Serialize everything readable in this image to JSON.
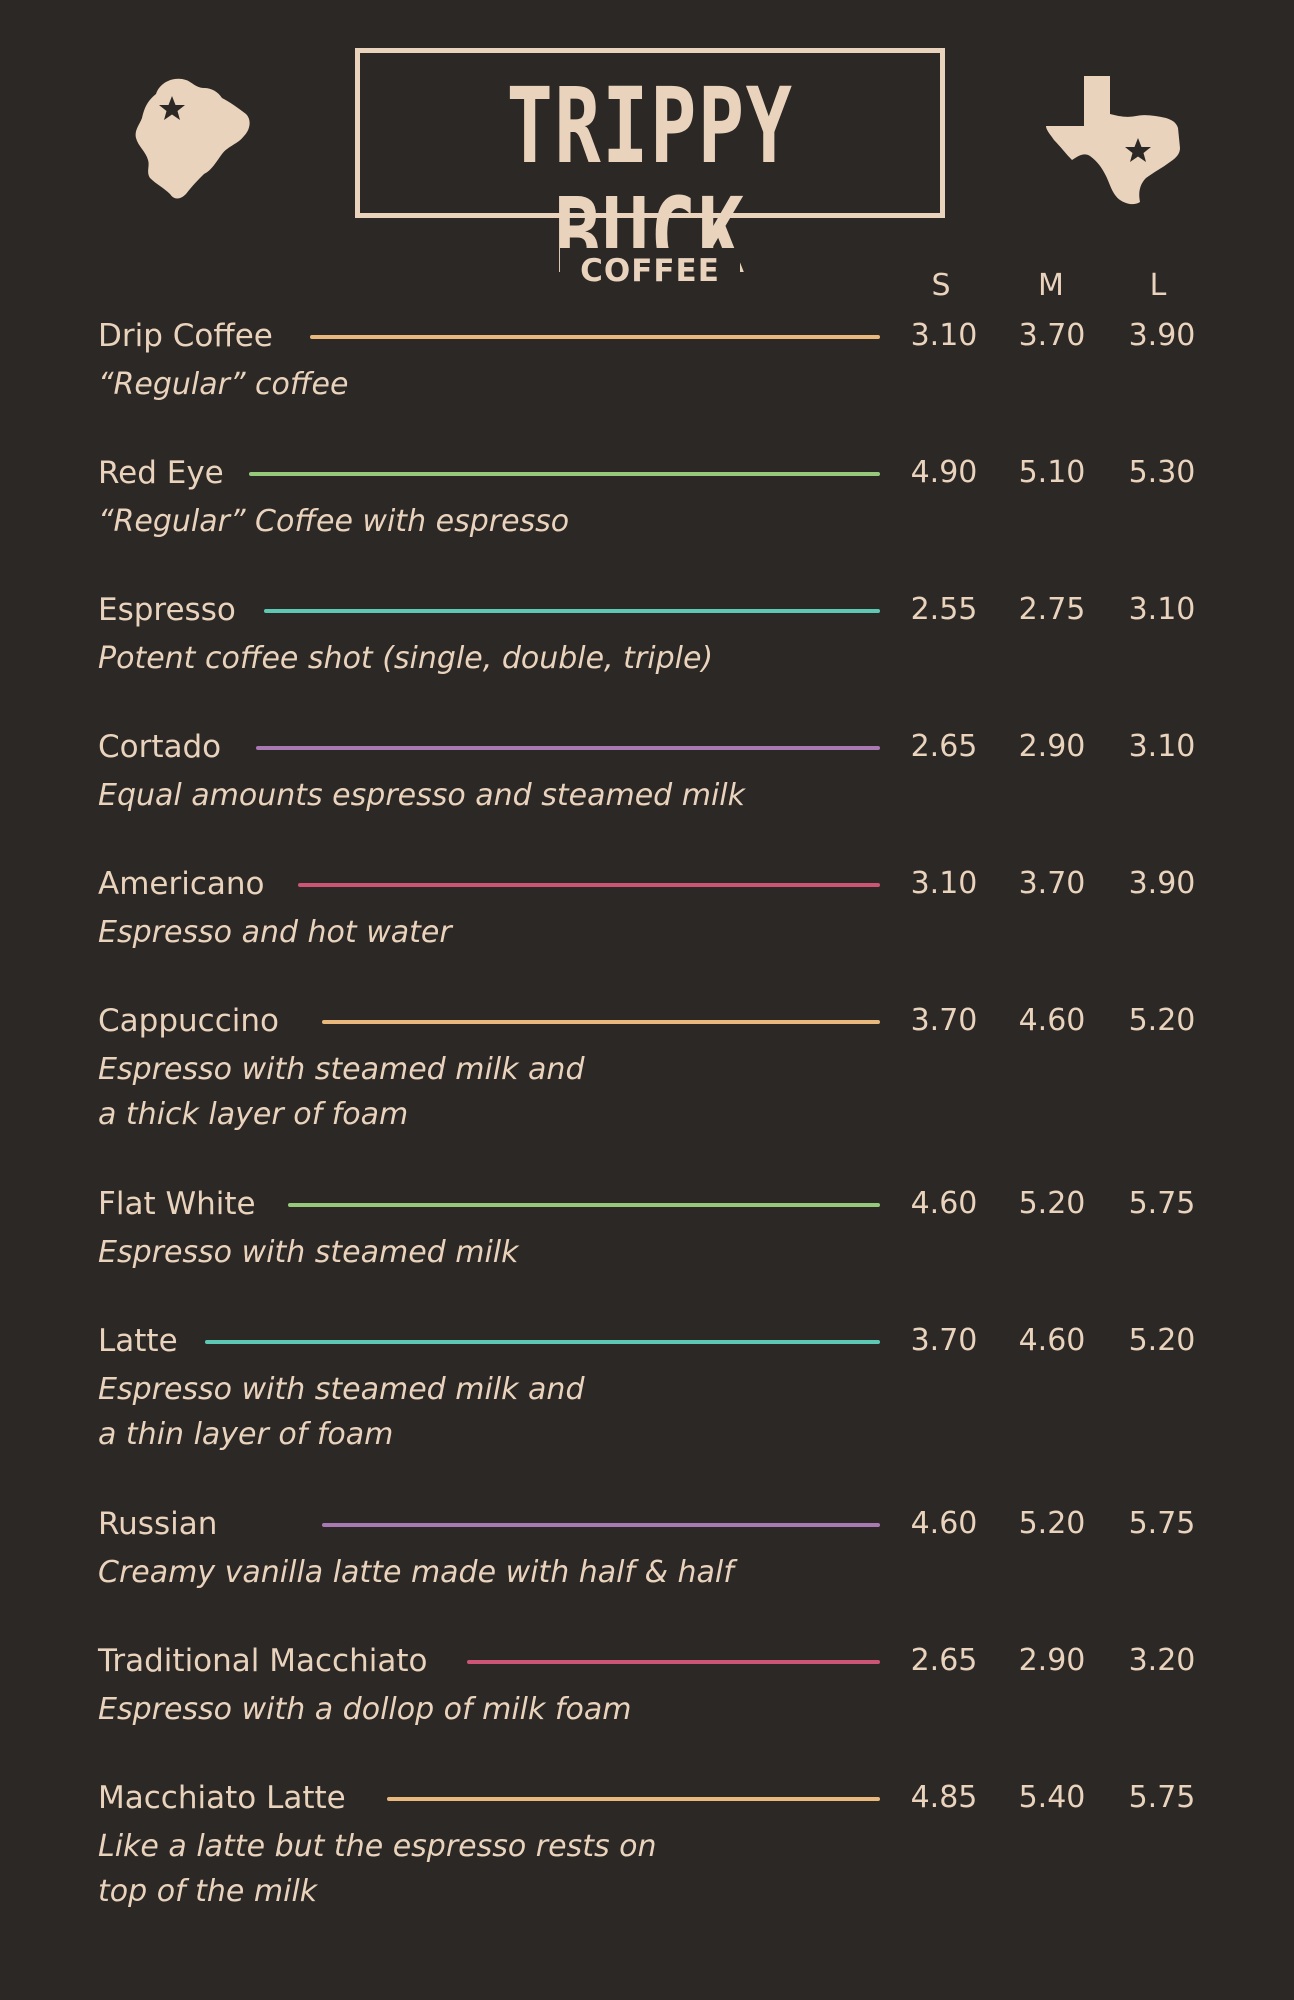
{
  "header": {
    "title": "TRIPPY BUCK",
    "subtitle": "COFFEE",
    "left_icon": "ethiopia-map-with-star",
    "right_icon": "texas-map-with-star"
  },
  "colors": {
    "background": "#2b2825",
    "text": "#ead3bd",
    "orange": "#e8b87c",
    "green": "#97c97a",
    "teal": "#5dc9b4",
    "purple": "#a979b2",
    "pink": "#cc5474"
  },
  "sizes": [
    "S",
    "M",
    "L"
  ],
  "items": [
    {
      "name": "Drip Coffee",
      "desc": [
        "“Regular” coffee"
      ],
      "prices": [
        "3.10",
        "3.70",
        "3.90"
      ],
      "color": "#e8b87c"
    },
    {
      "name": "Red Eye",
      "desc": [
        "“Regular” Coffee with espresso"
      ],
      "prices": [
        "4.90",
        "5.10",
        "5.30"
      ],
      "color": "#97c97a"
    },
    {
      "name": "Espresso",
      "desc": [
        "Potent coffee shot (single, double, triple)"
      ],
      "prices": [
        "2.55",
        "2.75",
        "3.10"
      ],
      "color": "#5dc9b4"
    },
    {
      "name": "Cortado",
      "desc": [
        "Equal amounts espresso and steamed milk"
      ],
      "prices": [
        "2.65",
        "2.90",
        "3.10"
      ],
      "color": "#a979b2"
    },
    {
      "name": "Americano",
      "desc": [
        "Espresso and hot water"
      ],
      "prices": [
        "3.10",
        "3.70",
        "3.90"
      ],
      "color": "#cc5474"
    },
    {
      "name": "Cappuccino",
      "desc": [
        "Espresso with steamed milk and",
        "a  thick layer of foam"
      ],
      "prices": [
        "3.70",
        "4.60",
        "5.20"
      ],
      "color": "#e8b87c"
    },
    {
      "name": "Flat White",
      "desc": [
        "Espresso with steamed milk"
      ],
      "prices": [
        "4.60",
        "5.20",
        "5.75"
      ],
      "color": "#97c97a"
    },
    {
      "name": "Latte",
      "desc": [
        "Espresso with steamed milk and",
        "a thin layer of foam"
      ],
      "prices": [
        "3.70",
        "4.60",
        "5.20"
      ],
      "color": "#5dc9b4"
    },
    {
      "name": "Russian",
      "desc": [
        "Creamy vanilla latte made with half & half"
      ],
      "prices": [
        "4.60",
        "5.20",
        "5.75"
      ],
      "color": "#a979b2"
    },
    {
      "name": "Traditional Macchiato",
      "desc": [
        "Espresso with a dollop of milk foam"
      ],
      "prices": [
        "2.65",
        "2.90",
        "3.20"
      ],
      "color": "#cc5474"
    },
    {
      "name": "Macchiato Latte",
      "desc": [
        "Like a latte but the espresso rests on",
        "top of the milk"
      ],
      "prices": [
        "4.85",
        "5.40",
        "5.75"
      ],
      "color": "#e8b87c"
    }
  ]
}
